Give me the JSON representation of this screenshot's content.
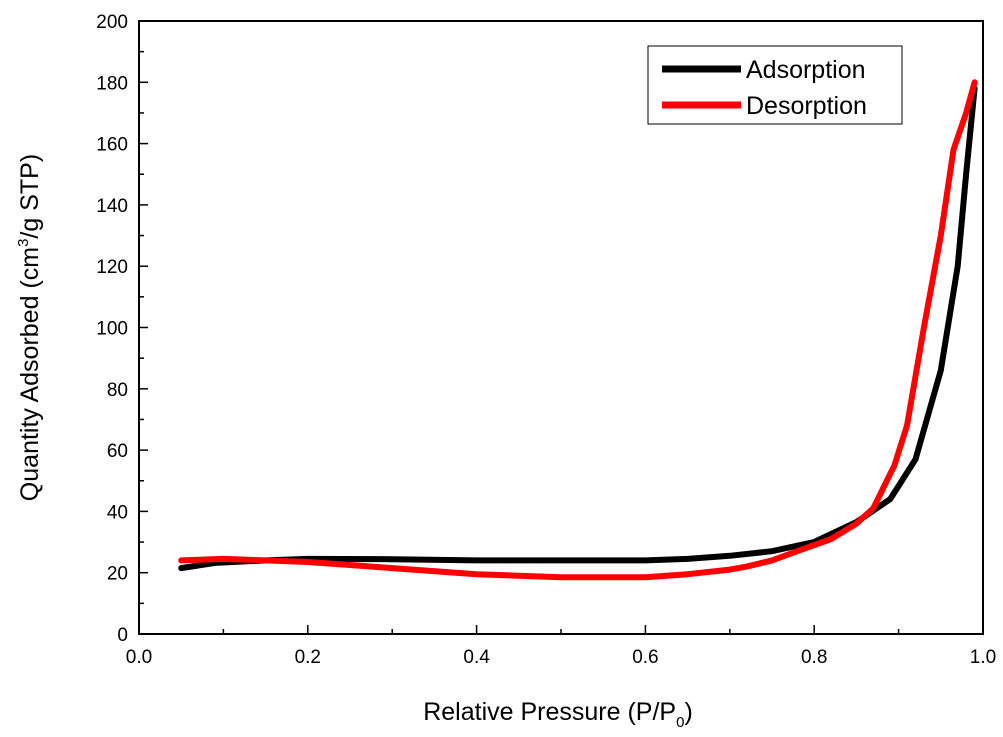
{
  "chart_data": {
    "type": "line",
    "xlabel": "Relative Pressure (P/P",
    "xlabel_sub": "0",
    "xlabel_end": ")",
    "ylabel": "Quantity Adsorbed (cm",
    "ylabel_sup": "3",
    "ylabel_end": "/g STP)",
    "xlim": [
      0.0,
      1.0
    ],
    "ylim": [
      0,
      200
    ],
    "xticks": [
      "0.0",
      "0.2",
      "0.4",
      "0.6",
      "0.8",
      "1.0"
    ],
    "yticks": [
      "0",
      "20",
      "40",
      "60",
      "80",
      "100",
      "120",
      "140",
      "160",
      "180",
      "200"
    ],
    "legend_position": "top-right",
    "series": [
      {
        "name": "Adsorption",
        "color": "#000000",
        "x": [
          0.05,
          0.09,
          0.15,
          0.2,
          0.3,
          0.4,
          0.5,
          0.6,
          0.65,
          0.7,
          0.75,
          0.8,
          0.85,
          0.89,
          0.92,
          0.95,
          0.97,
          0.98,
          0.99
        ],
        "y": [
          21.5,
          23.2,
          24.0,
          24.5,
          24.4,
          24.0,
          24.0,
          24.0,
          24.5,
          25.5,
          27.0,
          30.0,
          36.5,
          44.0,
          57.0,
          86.0,
          120.0,
          150.0,
          178.0
        ]
      },
      {
        "name": "Desorption",
        "color": "#ff0000",
        "x": [
          0.99,
          0.98,
          0.965,
          0.95,
          0.93,
          0.91,
          0.895,
          0.87,
          0.85,
          0.82,
          0.78,
          0.75,
          0.72,
          0.7,
          0.65,
          0.6,
          0.55,
          0.5,
          0.45,
          0.4,
          0.3,
          0.25,
          0.2,
          0.15,
          0.1,
          0.05
        ],
        "y": [
          180.0,
          170.0,
          158.0,
          130.0,
          100.0,
          68.0,
          55.0,
          41.0,
          36.0,
          31.0,
          27.0,
          24.0,
          22.0,
          21.0,
          19.5,
          18.5,
          18.5,
          18.5,
          19.0,
          19.5,
          21.5,
          22.5,
          23.5,
          24.0,
          24.5,
          24.0
        ]
      }
    ]
  }
}
